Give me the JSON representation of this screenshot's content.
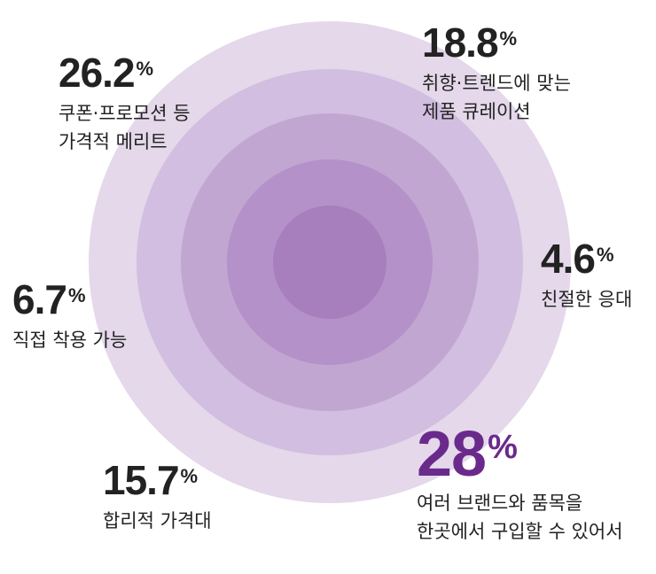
{
  "chart_data": {
    "type": "table",
    "colors": {
      "rings": [
        "#e4d8ea",
        "#d2bee0",
        "#c2a6d2",
        "#b491c8",
        "#a77fbd"
      ],
      "accent": "#6a2a8c",
      "text": "#222222"
    },
    "items": [
      {
        "value": "26.2",
        "unit": "%",
        "lines": [
          "쿠폰·프로모션 등",
          "가격적 메리트"
        ]
      },
      {
        "value": "18.8",
        "unit": "%",
        "lines": [
          "취향·트렌드에 맞는",
          "제품 큐레이션"
        ]
      },
      {
        "value": "4.6",
        "unit": "%",
        "lines": [
          "친절한 응대"
        ]
      },
      {
        "value": "6.7",
        "unit": "%",
        "lines": [
          "직접 착용 가능"
        ]
      },
      {
        "value": "15.7",
        "unit": "%",
        "lines": [
          "합리적 가격대"
        ]
      },
      {
        "value": "28",
        "unit": "%",
        "lines": [
          "여러 브랜드와 품목을",
          "한곳에서 구입할 수 있어서"
        ]
      }
    ]
  }
}
